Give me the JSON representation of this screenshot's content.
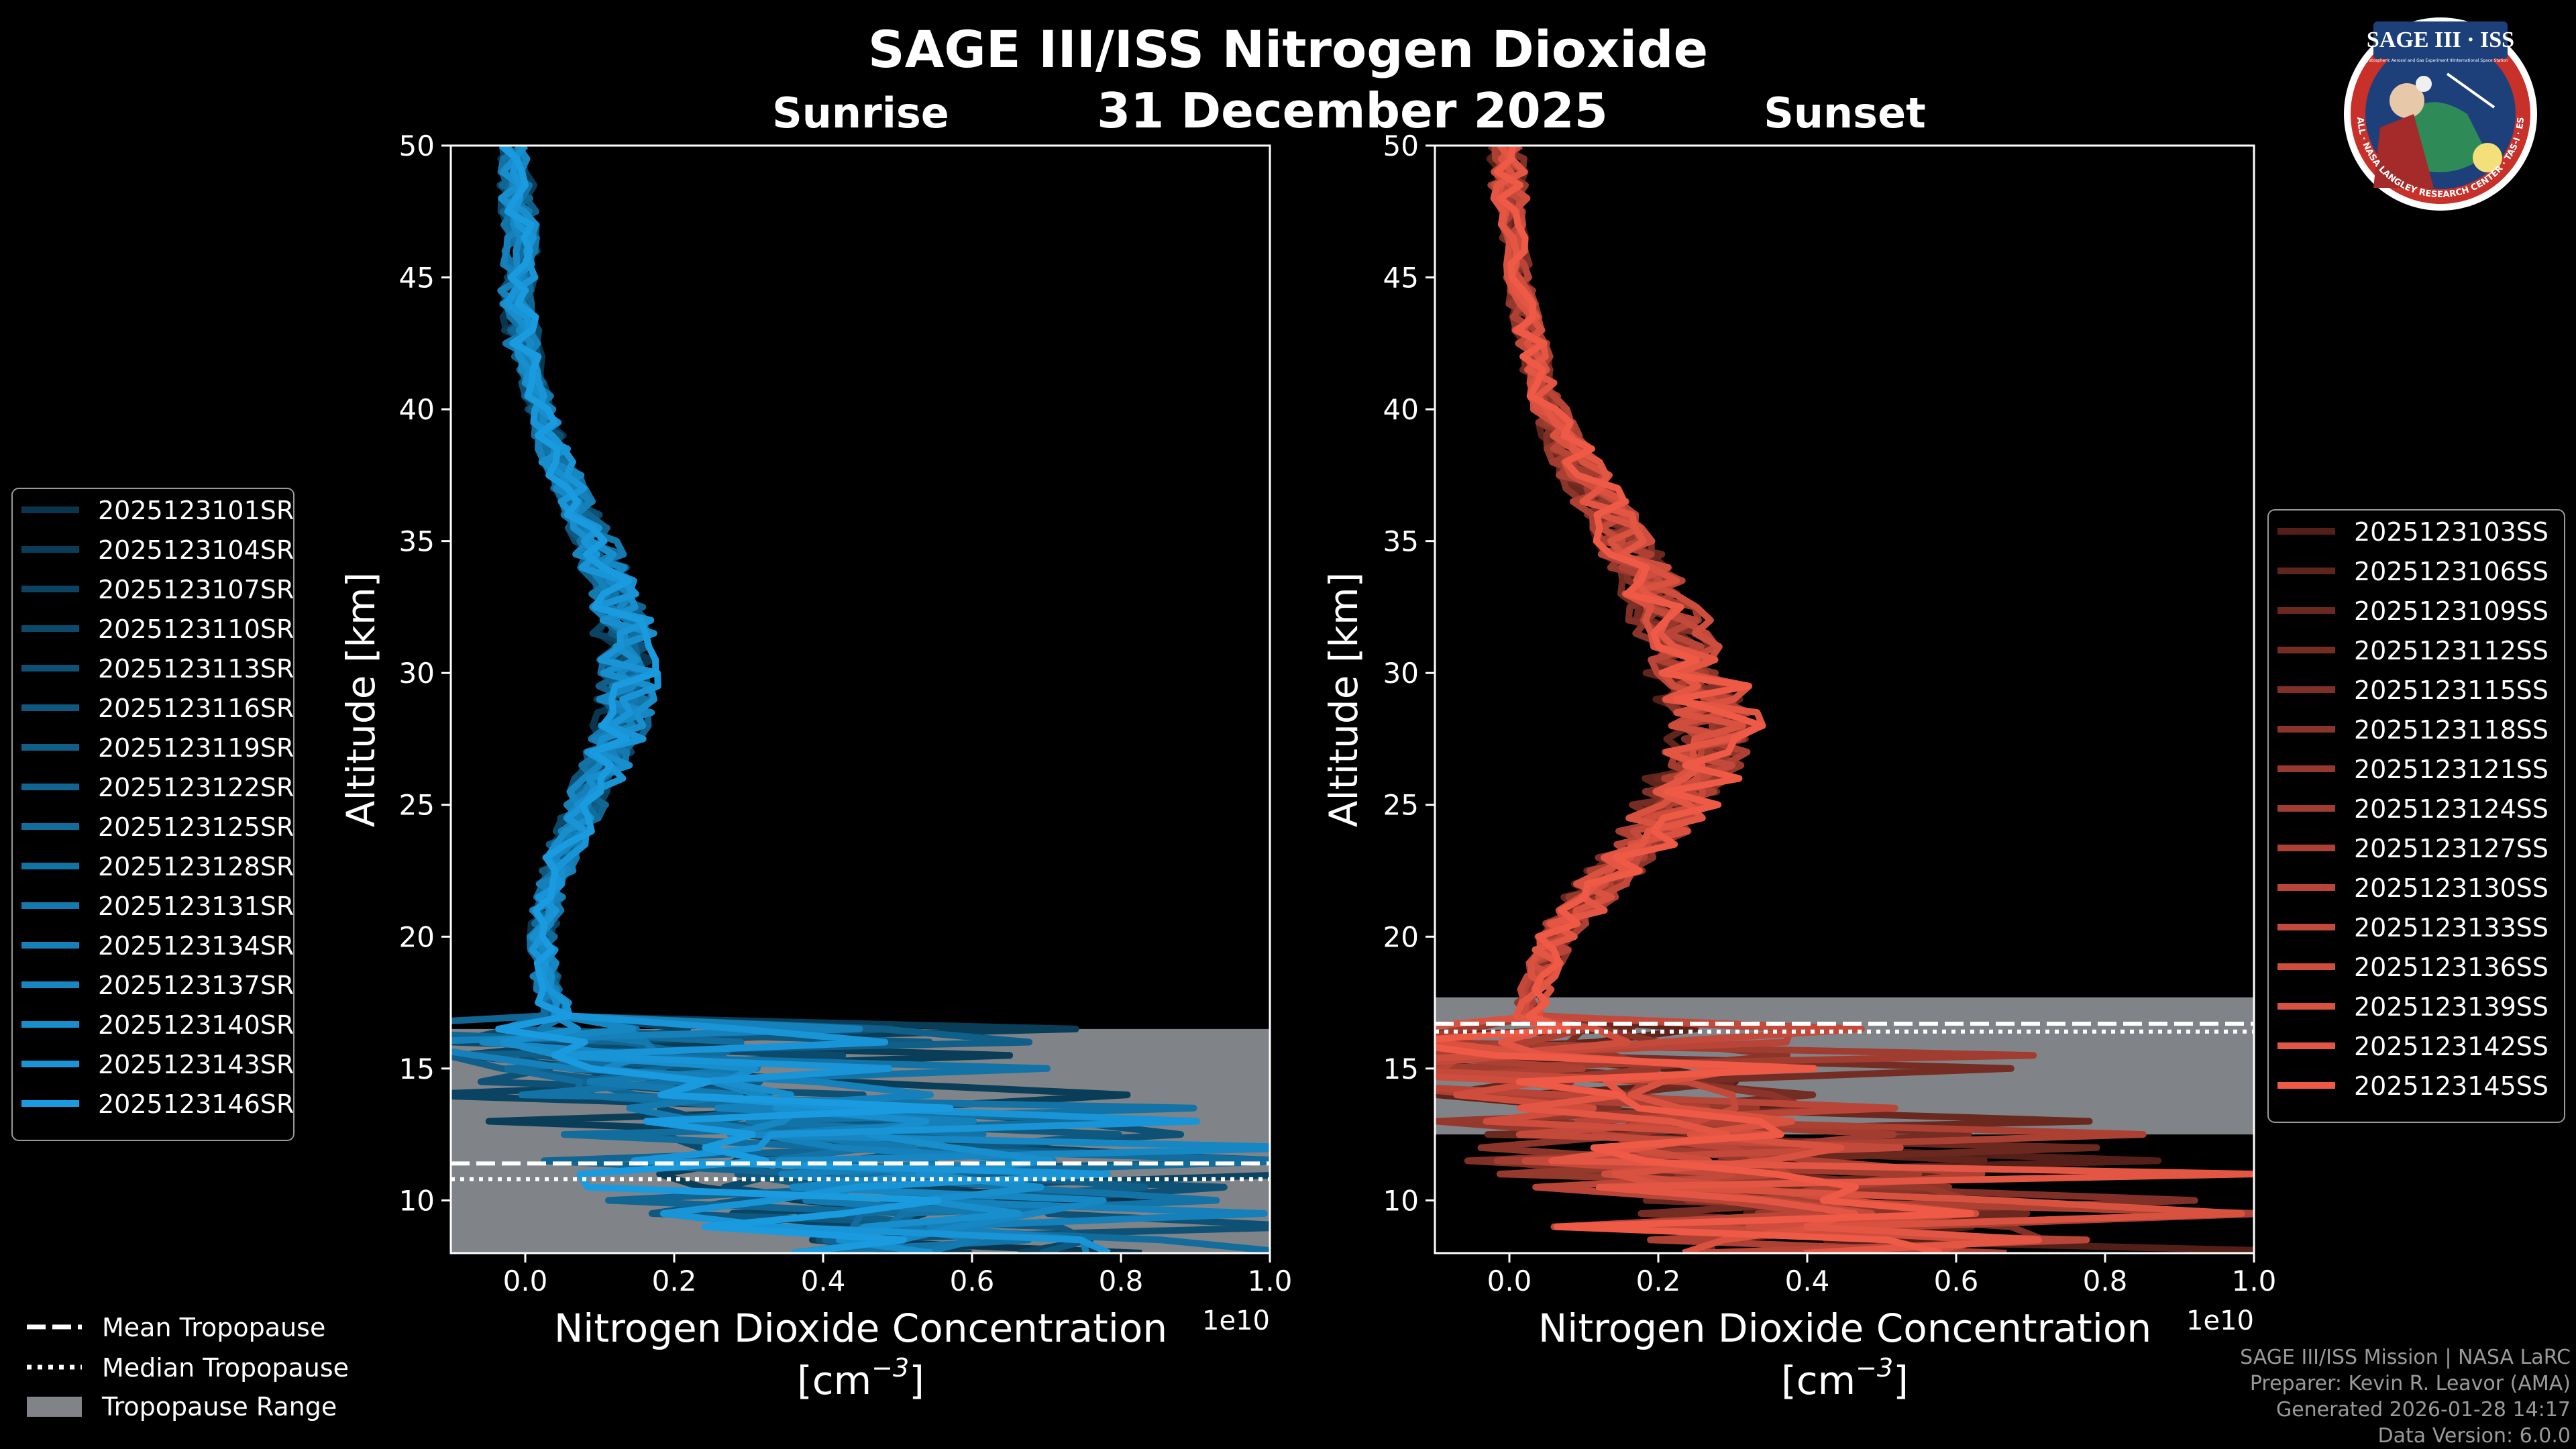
{
  "chart_data": {
    "type": "line",
    "title": "SAGE III/ISS Nitrogen Dioxide",
    "date": "31 December 2025",
    "colors": {
      "sunrise": "#1a9be0",
      "sunset": "#ef5a47",
      "tropopause_fill": "#808387",
      "axes": "#ffffff",
      "background": "#000000"
    },
    "legend_bottom": [
      "Mean Tropopause",
      "Median Tropopause",
      "Tropopause Range"
    ],
    "panels": [
      {
        "name": "Sunrise",
        "xlabel_line1": "Nitrogen Dioxide Concentration",
        "xlabel_line2": "[cm",
        "xlabel_exp": "−3",
        "xlabel_close": "]",
        "ylabel": "Altitude [km]",
        "x_offset_label": "1e10",
        "xlim": [
          -0.1,
          1.0
        ],
        "ylim": [
          8,
          50
        ],
        "xticks": [
          0.0,
          0.2,
          0.4,
          0.6,
          0.8,
          1.0
        ],
        "xtick_labels": [
          "0.0",
          "0.2",
          "0.4",
          "0.6",
          "0.8",
          "1.0"
        ],
        "yticks": [
          10,
          15,
          20,
          25,
          30,
          35,
          40,
          45,
          50
        ],
        "tropopause_range": [
          8,
          16.5
        ],
        "mean_tropopause": 11.4,
        "median_tropopause": 10.8,
        "series_names": [
          "2025123101SR",
          "2025123104SR",
          "2025123107SR",
          "2025123110SR",
          "2025123113SR",
          "2025123116SR",
          "2025123119SR",
          "2025123122SR",
          "2025123125SR",
          "2025123128SR",
          "2025123131SR",
          "2025123134SR",
          "2025123137SR",
          "2025123140SR",
          "2025123143SR",
          "2025123146SR"
        ],
        "mean_profile": {
          "altitude": [
            8,
            10,
            12,
            13,
            14,
            15,
            16,
            17,
            18,
            20,
            22,
            24,
            26,
            28,
            30,
            32,
            34,
            36,
            38,
            40,
            42,
            44,
            46,
            48,
            50
          ],
          "value": [
            0.45,
            0.42,
            0.36,
            0.3,
            0.2,
            0.1,
            0.05,
            0.04,
            0.03,
            0.02,
            0.035,
            0.06,
            0.09,
            0.12,
            0.13,
            0.12,
            0.1,
            0.07,
            0.04,
            0.02,
            0.0,
            -0.01,
            -0.005,
            -0.01,
            -0.01
          ]
        }
      },
      {
        "name": "Sunset",
        "xlabel_line1": "Nitrogen Dioxide Concentration",
        "xlabel_line2": "[cm",
        "xlabel_exp": "−3",
        "xlabel_close": "]",
        "ylabel": "Altitude [km]",
        "x_offset_label": "1e10",
        "xlim": [
          -0.1,
          1.0
        ],
        "ylim": [
          8,
          50
        ],
        "xticks": [
          0.0,
          0.2,
          0.4,
          0.6,
          0.8,
          1.0
        ],
        "xtick_labels": [
          "0.0",
          "0.2",
          "0.4",
          "0.6",
          "0.8",
          "1.0"
        ],
        "yticks": [
          10,
          15,
          20,
          25,
          30,
          35,
          40,
          45,
          50
        ],
        "tropopause_range": [
          12.5,
          17.7
        ],
        "mean_tropopause": 16.7,
        "median_tropopause": 16.4,
        "series_names": [
          "2025123103SS",
          "2025123106SS",
          "2025123109SS",
          "2025123112SS",
          "2025123115SS",
          "2025123118SS",
          "2025123121SS",
          "2025123124SS",
          "2025123127SS",
          "2025123130SS",
          "2025123133SS",
          "2025123136SS",
          "2025123139SS",
          "2025123142SS",
          "2025123145SS"
        ],
        "mean_profile": {
          "altitude": [
            8,
            10,
            12,
            13,
            14,
            15,
            16,
            17,
            18,
            20,
            22,
            24,
            26,
            28,
            30,
            32,
            34,
            36,
            38,
            40,
            42,
            44,
            46,
            48,
            50
          ],
          "value": [
            0.55,
            0.45,
            0.3,
            0.2,
            0.12,
            0.07,
            0.04,
            0.03,
            0.04,
            0.07,
            0.14,
            0.22,
            0.28,
            0.31,
            0.28,
            0.24,
            0.2,
            0.15,
            0.1,
            0.06,
            0.04,
            0.02,
            0.01,
            0.0,
            -0.005
          ]
        }
      }
    ]
  },
  "footer": {
    "line1": "SAGE III/ISS Mission | NASA LaRC",
    "line2": "Preparer: Kevin R. Leavor (AMA)",
    "line3": "Generated 2026-01-28 14:17",
    "line4": "Data Version: 6.0.0"
  },
  "logo": {
    "title": "SAGE III · ISS",
    "subtitle_left": "Stratospheric Aerosol and Gas Experiment III",
    "subtitle_right": "International Space Station",
    "ring_text": "BALL · NASA LANGLEY RESEARCH CENTER · TAS-I · ESA"
  }
}
